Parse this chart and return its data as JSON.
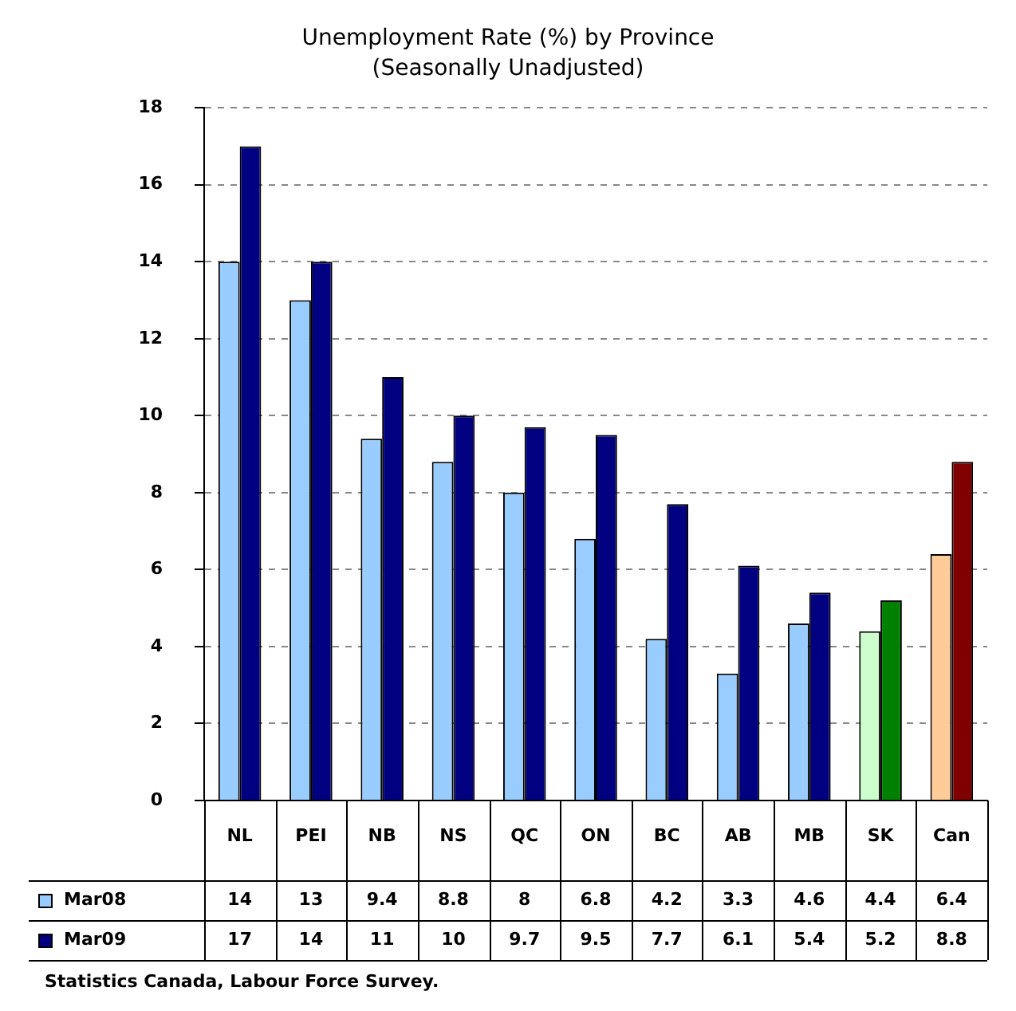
{
  "chart_data": {
    "type": "bar",
    "title": "Unemployment Rate (%) by Province",
    "subtitle": "(Seasonally Unadjusted)",
    "categories": [
      "NL",
      "PEI",
      "NB",
      "NS",
      "QC",
      "ON",
      "BC",
      "AB",
      "MB",
      "SK",
      "Can"
    ],
    "series": [
      {
        "name": "Mar08",
        "color": "#99ccff",
        "colors": [
          "#99ccff",
          "#99ccff",
          "#99ccff",
          "#99ccff",
          "#99ccff",
          "#99ccff",
          "#99ccff",
          "#99ccff",
          "#99ccff",
          "#ccffcc",
          "#ffcc99"
        ],
        "values": [
          14,
          13,
          9.4,
          8.8,
          8,
          6.8,
          4.2,
          3.3,
          4.6,
          4.4,
          6.4
        ]
      },
      {
        "name": "Mar09",
        "color": "#000080",
        "colors": [
          "#000080",
          "#000080",
          "#000080",
          "#000080",
          "#000080",
          "#000080",
          "#000080",
          "#000080",
          "#000080",
          "#008000",
          "#800000"
        ],
        "values": [
          17,
          14,
          11,
          10,
          9.7,
          9.5,
          7.7,
          6.1,
          5.4,
          5.2,
          8.8
        ]
      }
    ],
    "ylim": [
      0,
      18
    ],
    "yticks": [
      0,
      2,
      4,
      6,
      8,
      10,
      12,
      14,
      16,
      18
    ],
    "grid": "y",
    "legend": "bottom left",
    "data_labels": true,
    "annotations": [
      "Statistics Canada, Labour Force Survey."
    ]
  }
}
